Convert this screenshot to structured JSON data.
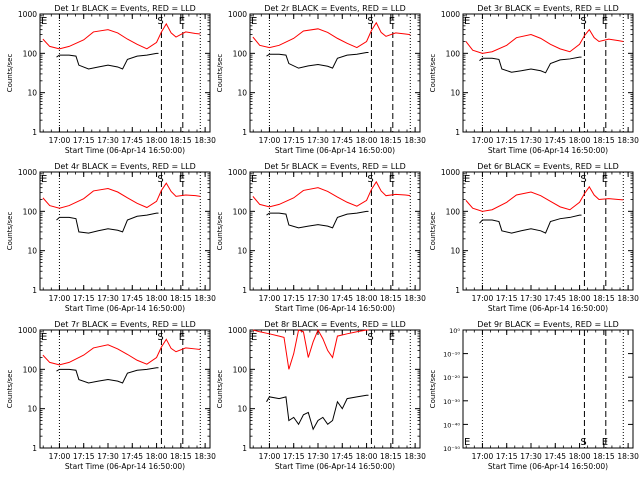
{
  "chart_data": [
    {
      "type": "line",
      "title": "Det 1r BLACK = Events, RED = LLD",
      "xlabel": "Start Time (06-Apr-14 16:50:00)",
      "ylabel": "Counts/sec",
      "x_ticks": [
        "17:00",
        "17:15",
        "17:30",
        "17:45",
        "18:00",
        "18:15",
        "18:30"
      ],
      "y_ticks": [
        "1",
        "10",
        "100",
        "1000"
      ],
      "ylim": [
        1,
        1000
      ],
      "y_scale": "log",
      "markers": {
        "E": 16.85,
        "S": 18.05,
        "E2": 18.27
      },
      "series": [
        {
          "name": "RED = LLD",
          "color": "#ff0000",
          "x": [
            16.83,
            16.9,
            17.0,
            17.1,
            17.25,
            17.35,
            17.5,
            17.6,
            17.7,
            17.8,
            17.9,
            18.0,
            18.05,
            18.1,
            18.15,
            18.2,
            18.3,
            18.4,
            18.45
          ],
          "y": [
            230,
            150,
            130,
            150,
            220,
            350,
            400,
            330,
            230,
            170,
            130,
            190,
            350,
            560,
            330,
            260,
            350,
            320,
            310
          ]
        },
        {
          "name": "BLACK = Events",
          "color": "#000000",
          "x": [
            16.97,
            17.0,
            17.1,
            17.17,
            17.2,
            17.3,
            17.4,
            17.5,
            17.6,
            17.65,
            17.7,
            17.8,
            17.9,
            18.0,
            18.02
          ],
          "y": [
            80,
            90,
            90,
            85,
            50,
            40,
            45,
            50,
            45,
            40,
            70,
            85,
            90,
            100,
            100
          ]
        }
      ]
    },
    {
      "type": "line",
      "title": "Det 2r BLACK = Events, RED = LLD",
      "xlabel": "Start Time (06-Apr-14 16:50:00)",
      "ylabel": "Counts/sec",
      "x_ticks": [
        "17:00",
        "17:15",
        "17:30",
        "17:45",
        "18:00",
        "18:15",
        "18:30"
      ],
      "y_ticks": [
        "1",
        "10",
        "100",
        "1000"
      ],
      "ylim": [
        1,
        1000
      ],
      "y_scale": "log",
      "markers": {
        "E": 16.85,
        "S": 18.05,
        "E2": 18.27
      },
      "series": [
        {
          "name": "RED = LLD",
          "color": "#ff0000",
          "x": [
            16.83,
            16.9,
            17.0,
            17.1,
            17.25,
            17.35,
            17.5,
            17.6,
            17.7,
            17.8,
            17.9,
            18.0,
            18.05,
            18.1,
            18.15,
            18.2,
            18.3,
            18.4,
            18.45
          ],
          "y": [
            260,
            160,
            140,
            160,
            240,
            370,
            420,
            340,
            240,
            180,
            140,
            200,
            380,
            600,
            340,
            270,
            330,
            310,
            300
          ]
        },
        {
          "name": "BLACK = Events",
          "color": "#000000",
          "x": [
            16.97,
            17.0,
            17.1,
            17.17,
            17.2,
            17.3,
            17.4,
            17.5,
            17.6,
            17.65,
            17.7,
            17.8,
            17.9,
            18.0,
            18.02
          ],
          "y": [
            85,
            95,
            95,
            90,
            55,
            42,
            48,
            52,
            47,
            42,
            75,
            90,
            95,
            105,
            105
          ]
        }
      ]
    },
    {
      "type": "line",
      "title": "Det 3r BLACK = Events, RED = LLD",
      "xlabel": "Start Time (06-Apr-14 16:50:00)",
      "ylabel": "Counts/sec",
      "x_ticks": [
        "17:00",
        "17:15",
        "17:30",
        "17:45",
        "18:00",
        "18:15",
        "18:30"
      ],
      "y_ticks": [
        "1",
        "10",
        "100",
        "1000"
      ],
      "ylim": [
        1,
        1000
      ],
      "y_scale": "log",
      "markers": {
        "E": 16.85,
        "S": 18.05,
        "E2": 18.27
      },
      "series": [
        {
          "name": "RED = LLD",
          "color": "#ff0000",
          "x": [
            16.83,
            16.9,
            17.0,
            17.1,
            17.25,
            17.35,
            17.5,
            17.6,
            17.7,
            17.8,
            17.9,
            18.0,
            18.05,
            18.1,
            18.15,
            18.2,
            18.3,
            18.4,
            18.45
          ],
          "y": [
            200,
            120,
            100,
            110,
            160,
            250,
            300,
            240,
            170,
            130,
            110,
            170,
            280,
            400,
            250,
            200,
            230,
            210,
            200
          ]
        },
        {
          "name": "BLACK = Events",
          "color": "#000000",
          "x": [
            16.97,
            17.0,
            17.1,
            17.17,
            17.2,
            17.3,
            17.4,
            17.5,
            17.6,
            17.65,
            17.7,
            17.8,
            17.9,
            18.0,
            18.02
          ],
          "y": [
            65,
            75,
            75,
            70,
            40,
            33,
            36,
            40,
            36,
            32,
            55,
            68,
            72,
            80,
            80
          ]
        }
      ]
    },
    {
      "type": "line",
      "title": "Det 4r BLACK = Events, RED = LLD",
      "xlabel": "Start Time (06-Apr-14 16:50:00)",
      "ylabel": "Counts/sec",
      "x_ticks": [
        "17:00",
        "17:15",
        "17:30",
        "17:45",
        "18:00",
        "18:15",
        "18:30"
      ],
      "y_ticks": [
        "1",
        "10",
        "100",
        "1000"
      ],
      "ylim": [
        1,
        1000
      ],
      "y_scale": "log",
      "markers": {
        "E": 16.85,
        "S": 18.05,
        "E2": 18.27
      },
      "series": [
        {
          "name": "RED = LLD",
          "color": "#ff0000",
          "x": [
            16.83,
            16.9,
            17.0,
            17.1,
            17.25,
            17.35,
            17.5,
            17.6,
            17.7,
            17.8,
            17.9,
            18.0,
            18.05,
            18.1,
            18.15,
            18.2,
            18.3,
            18.4,
            18.45
          ],
          "y": [
            220,
            140,
            120,
            140,
            210,
            330,
            380,
            310,
            220,
            160,
            125,
            180,
            340,
            520,
            320,
            240,
            260,
            250,
            240
          ]
        },
        {
          "name": "BLACK = Events",
          "color": "#000000",
          "x": [
            16.97,
            17.0,
            17.1,
            17.17,
            17.2,
            17.3,
            17.4,
            17.5,
            17.6,
            17.65,
            17.7,
            17.8,
            17.9,
            18.0,
            18.02
          ],
          "y": [
            60,
            70,
            70,
            65,
            30,
            28,
            32,
            36,
            33,
            30,
            60,
            75,
            80,
            90,
            90
          ]
        }
      ]
    },
    {
      "type": "line",
      "title": "Det 5r BLACK = Events, RED = LLD",
      "xlabel": "Start Time (06-Apr-14 16:50:00)",
      "ylabel": "Counts/sec",
      "x_ticks": [
        "17:00",
        "17:15",
        "17:30",
        "17:45",
        "18:00",
        "18:15",
        "18:30"
      ],
      "y_ticks": [
        "1",
        "10",
        "100",
        "1000"
      ],
      "ylim": [
        1,
        1000
      ],
      "y_scale": "log",
      "markers": {
        "E": 16.85,
        "S": 18.05,
        "E2": 18.27
      },
      "series": [
        {
          "name": "RED = LLD",
          "color": "#ff0000",
          "x": [
            16.83,
            16.9,
            17.0,
            17.1,
            17.25,
            17.35,
            17.5,
            17.6,
            17.7,
            17.8,
            17.9,
            18.0,
            18.05,
            18.1,
            18.15,
            18.2,
            18.3,
            18.4,
            18.45
          ],
          "y": [
            240,
            150,
            130,
            150,
            220,
            340,
            400,
            320,
            230,
            170,
            135,
            190,
            360,
            560,
            330,
            250,
            270,
            260,
            250
          ]
        },
        {
          "name": "BLACK = Events",
          "color": "#000000",
          "x": [
            16.97,
            17.0,
            17.1,
            17.17,
            17.2,
            17.3,
            17.4,
            17.5,
            17.6,
            17.65,
            17.7,
            17.8,
            17.9,
            18.0,
            18.02
          ],
          "y": [
            80,
            90,
            90,
            85,
            45,
            38,
            42,
            46,
            42,
            38,
            70,
            85,
            90,
            100,
            100
          ]
        }
      ]
    },
    {
      "type": "line",
      "title": "Det 6r BLACK = Events, RED = LLD",
      "xlabel": "Start Time (06-Apr-14 16:50:00)",
      "ylabel": "Counts/sec",
      "x_ticks": [
        "17:00",
        "17:15",
        "17:30",
        "17:45",
        "18:00",
        "18:15",
        "18:30"
      ],
      "y_ticks": [
        "1",
        "10",
        "100",
        "1000"
      ],
      "ylim": [
        1,
        1000
      ],
      "y_scale": "log",
      "markers": {
        "E": 16.85,
        "S": 18.05,
        "E2": 18.27
      },
      "series": [
        {
          "name": "RED = LLD",
          "color": "#ff0000",
          "x": [
            16.83,
            16.9,
            17.0,
            17.1,
            17.25,
            17.35,
            17.5,
            17.6,
            17.7,
            17.8,
            17.9,
            18.0,
            18.05,
            18.1,
            18.15,
            18.2,
            18.3,
            18.4,
            18.45
          ],
          "y": [
            190,
            120,
            100,
            110,
            170,
            260,
            310,
            250,
            180,
            130,
            110,
            170,
            280,
            420,
            260,
            200,
            210,
            200,
            195
          ]
        },
        {
          "name": "BLACK = Events",
          "color": "#000000",
          "x": [
            16.97,
            17.0,
            17.1,
            17.17,
            17.2,
            17.3,
            17.4,
            17.5,
            17.6,
            17.65,
            17.7,
            17.8,
            17.9,
            18.0,
            18.02
          ],
          "y": [
            50,
            60,
            60,
            55,
            32,
            28,
            32,
            36,
            32,
            28,
            55,
            65,
            70,
            80,
            80
          ]
        }
      ]
    },
    {
      "type": "line",
      "title": "Det 7r BLACK = Events, RED = LLD",
      "xlabel": "Start Time (06-Apr-14 16:50:00)",
      "ylabel": "Counts/sec",
      "x_ticks": [
        "17:00",
        "17:15",
        "17:30",
        "17:45",
        "18:00",
        "18:15",
        "18:30"
      ],
      "y_ticks": [
        "1",
        "10",
        "100",
        "1000"
      ],
      "ylim": [
        1,
        1000
      ],
      "y_scale": "log",
      "markers": {
        "E": 16.85,
        "S": 18.05,
        "E2": 18.27
      },
      "series": [
        {
          "name": "RED = LLD",
          "color": "#ff0000",
          "x": [
            16.83,
            16.9,
            17.0,
            17.1,
            17.25,
            17.35,
            17.5,
            17.6,
            17.7,
            17.8,
            17.9,
            18.0,
            18.05,
            18.1,
            18.15,
            18.2,
            18.3,
            18.4,
            18.45
          ],
          "y": [
            230,
            150,
            130,
            150,
            230,
            350,
            420,
            330,
            240,
            170,
            135,
            200,
            370,
            580,
            340,
            280,
            350,
            330,
            320
          ]
        },
        {
          "name": "BLACK = Events",
          "color": "#000000",
          "x": [
            16.97,
            17.0,
            17.1,
            17.17,
            17.2,
            17.3,
            17.4,
            17.5,
            17.6,
            17.65,
            17.7,
            17.8,
            17.9,
            18.0,
            18.02
          ],
          "y": [
            90,
            100,
            100,
            95,
            55,
            45,
            50,
            55,
            50,
            45,
            80,
            95,
            100,
            110,
            110
          ]
        }
      ]
    },
    {
      "type": "line",
      "title": "Det 8r BLACK = Events, RED = LLD",
      "xlabel": "Start Time (06-Apr-14 16:50:00)",
      "ylabel": "Counts/sec",
      "x_ticks": [
        "17:00",
        "17:15",
        "17:30",
        "17:45",
        "18:00",
        "18:15",
        "18:30"
      ],
      "y_ticks": [
        "1",
        "10",
        "100",
        "1000"
      ],
      "ylim": [
        1,
        1000
      ],
      "y_scale": "log",
      "markers": {
        "E": 16.85,
        "S": 18.05,
        "E2": 18.27
      },
      "series": [
        {
          "name": "RED = LLD",
          "color": "#ff0000",
          "x": [
            16.83,
            16.9,
            17.0,
            17.1,
            17.15,
            17.2,
            17.25,
            17.3,
            17.35,
            17.4,
            17.45,
            17.5,
            17.55,
            17.6,
            17.65,
            17.7,
            17.8,
            17.9,
            18.0,
            18.02
          ],
          "y": [
            1000,
            900,
            800,
            700,
            650,
            100,
            250,
            1000,
            900,
            200,
            500,
            1000,
            600,
            300,
            200,
            700,
            800,
            900,
            1000,
            1000
          ]
        },
        {
          "name": "BLACK = Events",
          "color": "#000000",
          "x": [
            16.97,
            17.0,
            17.1,
            17.17,
            17.2,
            17.25,
            17.3,
            17.35,
            17.4,
            17.45,
            17.5,
            17.55,
            17.6,
            17.65,
            17.7,
            17.75,
            17.8,
            17.9,
            18.0,
            18.02
          ],
          "y": [
            15,
            20,
            18,
            20,
            5,
            6,
            4,
            7,
            8,
            3,
            5,
            6,
            4,
            5,
            15,
            10,
            18,
            20,
            22,
            22
          ]
        }
      ]
    },
    {
      "type": "line",
      "title": "Det 9r BLACK = Events, RED = LLD",
      "xlabel": "Start Time (06-Apr-14 16:50:00)",
      "ylabel": "Counts/sec",
      "x_ticks": [
        "17:00",
        "17:15",
        "17:30",
        "17:45",
        "18:00",
        "18:15",
        "18:30"
      ],
      "y_ticks": [
        "10⁰",
        "10⁻¹⁰",
        "10⁻²⁰",
        "10⁻³⁰",
        "10⁻⁴⁰",
        "10⁻⁵⁰"
      ],
      "y_scale": "log",
      "markers": {
        "E": 16.85,
        "S": 18.05,
        "E2": 18.27
      },
      "series": []
    }
  ]
}
